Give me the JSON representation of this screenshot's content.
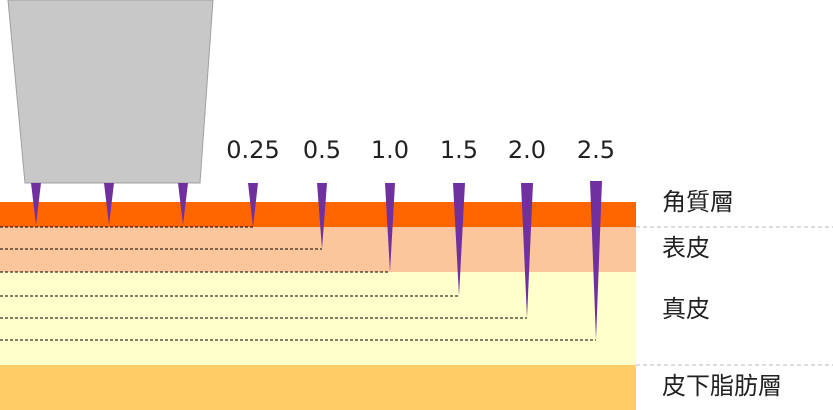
{
  "needles": [
    {
      "label": "0.25"
    },
    {
      "label": "0.5"
    },
    {
      "label": "1.0"
    },
    {
      "label": "1.5"
    },
    {
      "label": "2.0"
    },
    {
      "label": "2.5"
    }
  ],
  "layers": [
    {
      "label": "角質層"
    },
    {
      "label": "表皮"
    },
    {
      "label": "真皮"
    },
    {
      "label": "皮下脂肪層"
    }
  ]
}
